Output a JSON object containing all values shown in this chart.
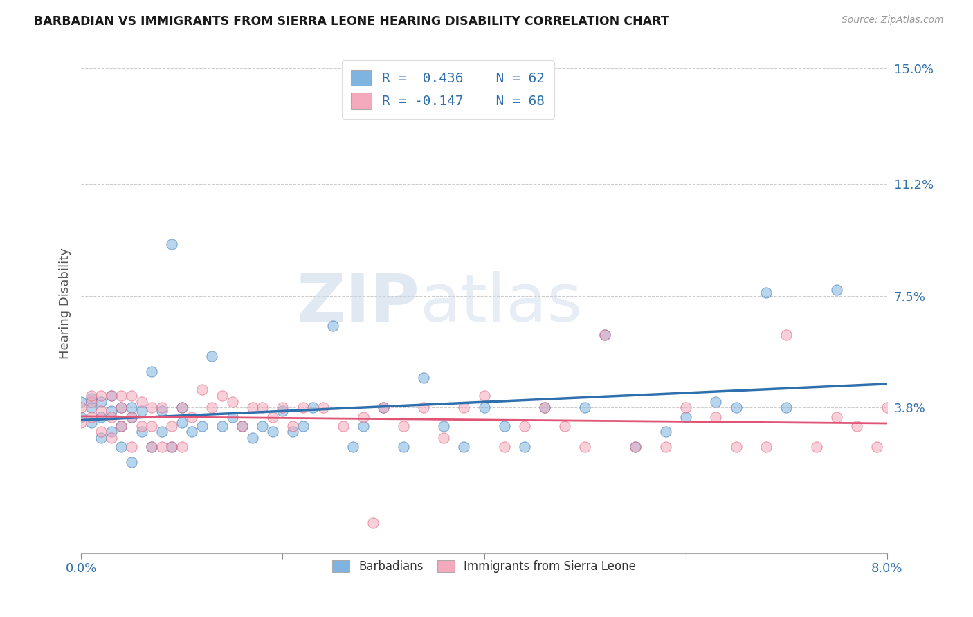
{
  "title": "BARBADIAN VS IMMIGRANTS FROM SIERRA LEONE HEARING DISABILITY CORRELATION CHART",
  "source": "Source: ZipAtlas.com",
  "ylabel": "Hearing Disability",
  "legend_labels": [
    "Barbadians",
    "Immigrants from Sierra Leone"
  ],
  "legend_r": [
    "R =  0.436",
    "R = -0.147"
  ],
  "legend_n": [
    "N = 62",
    "N = 68"
  ],
  "blue_color": "#7fb3e0",
  "pink_color": "#f4aabc",
  "blue_line_color": "#2e6fad",
  "pink_line_color": "#e05575",
  "watermark_zip": "ZIP",
  "watermark_atlas": "atlas",
  "xlim": [
    0.0,
    0.08
  ],
  "ylim": [
    -0.01,
    0.155
  ],
  "yticks": [
    0.038,
    0.075,
    0.112,
    0.15
  ],
  "ytick_labels": [
    "3.8%",
    "7.5%",
    "11.2%",
    "15.0%"
  ],
  "xticks": [
    0.0,
    0.02,
    0.04,
    0.06,
    0.08
  ],
  "xtick_labels": [
    "0.0%",
    "",
    "",
    "",
    "8.0%"
  ],
  "blue_scatter_x": [
    0.0,
    0.0,
    0.001,
    0.001,
    0.001,
    0.002,
    0.002,
    0.002,
    0.003,
    0.003,
    0.003,
    0.004,
    0.004,
    0.004,
    0.005,
    0.005,
    0.005,
    0.006,
    0.006,
    0.007,
    0.007,
    0.008,
    0.008,
    0.009,
    0.009,
    0.01,
    0.01,
    0.011,
    0.012,
    0.013,
    0.014,
    0.015,
    0.016,
    0.017,
    0.018,
    0.019,
    0.02,
    0.021,
    0.022,
    0.023,
    0.025,
    0.027,
    0.028,
    0.03,
    0.032,
    0.034,
    0.036,
    0.038,
    0.04,
    0.042,
    0.044,
    0.046,
    0.05,
    0.052,
    0.055,
    0.058,
    0.06,
    0.063,
    0.065,
    0.068,
    0.07,
    0.075
  ],
  "blue_scatter_y": [
    0.035,
    0.04,
    0.033,
    0.038,
    0.041,
    0.028,
    0.035,
    0.04,
    0.03,
    0.037,
    0.042,
    0.025,
    0.032,
    0.038,
    0.02,
    0.035,
    0.038,
    0.03,
    0.037,
    0.025,
    0.05,
    0.03,
    0.037,
    0.025,
    0.092,
    0.033,
    0.038,
    0.03,
    0.032,
    0.055,
    0.032,
    0.035,
    0.032,
    0.028,
    0.032,
    0.03,
    0.037,
    0.03,
    0.032,
    0.038,
    0.065,
    0.025,
    0.032,
    0.038,
    0.025,
    0.048,
    0.032,
    0.025,
    0.038,
    0.032,
    0.025,
    0.038,
    0.038,
    0.062,
    0.025,
    0.03,
    0.035,
    0.04,
    0.038,
    0.076,
    0.038,
    0.077
  ],
  "pink_scatter_x": [
    0.0,
    0.0,
    0.001,
    0.001,
    0.001,
    0.002,
    0.002,
    0.002,
    0.003,
    0.003,
    0.003,
    0.004,
    0.004,
    0.004,
    0.005,
    0.005,
    0.005,
    0.006,
    0.006,
    0.007,
    0.007,
    0.007,
    0.008,
    0.008,
    0.009,
    0.009,
    0.01,
    0.01,
    0.011,
    0.012,
    0.013,
    0.014,
    0.015,
    0.016,
    0.017,
    0.018,
    0.019,
    0.02,
    0.021,
    0.022,
    0.024,
    0.026,
    0.028,
    0.029,
    0.03,
    0.032,
    0.034,
    0.036,
    0.038,
    0.04,
    0.042,
    0.044,
    0.046,
    0.048,
    0.05,
    0.052,
    0.055,
    0.058,
    0.06,
    0.063,
    0.065,
    0.068,
    0.07,
    0.073,
    0.075,
    0.077,
    0.079,
    0.08
  ],
  "pink_scatter_y": [
    0.033,
    0.038,
    0.035,
    0.04,
    0.042,
    0.03,
    0.037,
    0.042,
    0.028,
    0.035,
    0.042,
    0.032,
    0.038,
    0.042,
    0.025,
    0.035,
    0.042,
    0.032,
    0.04,
    0.025,
    0.032,
    0.038,
    0.025,
    0.038,
    0.025,
    0.032,
    0.025,
    0.038,
    0.035,
    0.044,
    0.038,
    0.042,
    0.04,
    0.032,
    0.038,
    0.038,
    0.035,
    0.038,
    0.032,
    0.038,
    0.038,
    0.032,
    0.035,
    0.0,
    0.038,
    0.032,
    0.038,
    0.028,
    0.038,
    0.042,
    0.025,
    0.032,
    0.038,
    0.032,
    0.025,
    0.062,
    0.025,
    0.025,
    0.038,
    0.035,
    0.025,
    0.025,
    0.062,
    0.025,
    0.035,
    0.032,
    0.025,
    0.038
  ]
}
